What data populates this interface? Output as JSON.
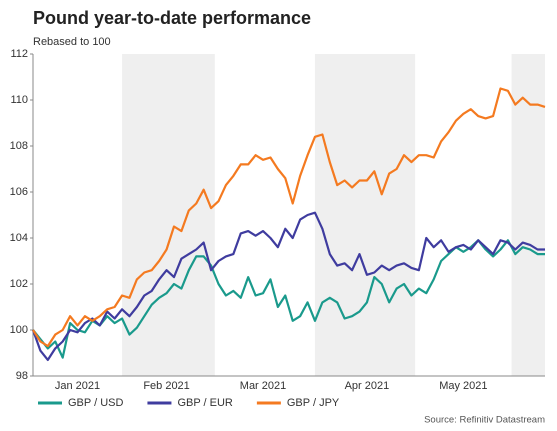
{
  "chart_data": {
    "type": "line",
    "title": "Pound year-to-date performance",
    "subtitle": "Rebased to 100",
    "source": "Source: Refinitiv Datastream",
    "categories": [
      null,
      null,
      null,
      null,
      null,
      null,
      "Jan 2021",
      null,
      null,
      null,
      null,
      null,
      null,
      null,
      null,
      null,
      null,
      null,
      "Feb 2021",
      null,
      null,
      null,
      null,
      null,
      null,
      null,
      null,
      null,
      null,
      null,
      null,
      "Mar 2021",
      null,
      null,
      null,
      null,
      null,
      null,
      null,
      null,
      null,
      null,
      null,
      null,
      null,
      "Apr 2021",
      null,
      null,
      null,
      null,
      null,
      null,
      null,
      null,
      null,
      null,
      null,
      null,
      "May 2021",
      null,
      null,
      null,
      null,
      null,
      null,
      null,
      null,
      null,
      null,
      null
    ],
    "ylim": [
      98,
      112
    ],
    "yticks": [
      98,
      100,
      102,
      104,
      106,
      108,
      110,
      112
    ],
    "shade_alternate_months": true,
    "series": [
      {
        "name": "GBP / USD",
        "color": "#1a9a8c",
        "values": [
          100,
          99.6,
          99.2,
          99.5,
          98.8,
          100.3,
          100.0,
          99.9,
          100.4,
          100.2,
          100.6,
          100.3,
          100.5,
          99.8,
          100.1,
          100.6,
          101.1,
          101.4,
          101.6,
          102.0,
          101.8,
          102.6,
          103.2,
          103.2,
          102.8,
          102.0,
          101.5,
          101.7,
          101.4,
          102.3,
          101.5,
          101.6,
          102.2,
          101.0,
          101.5,
          100.4,
          100.6,
          101.2,
          100.4,
          101.2,
          101.4,
          101.2,
          100.5,
          100.6,
          100.8,
          101.2,
          102.3,
          102.0,
          101.2,
          101.8,
          102.0,
          101.5,
          101.8,
          101.6,
          102.2,
          103.0,
          103.3,
          103.6,
          103.4,
          103.6,
          103.9,
          103.5,
          103.2,
          103.5,
          103.9,
          103.3,
          103.6,
          103.5,
          103.3,
          103.3
        ]
      },
      {
        "name": "GBP / EUR",
        "color": "#3f3c9f",
        "values": [
          100,
          99.1,
          98.7,
          99.2,
          99.5,
          100.0,
          99.9,
          100.3,
          100.5,
          100.2,
          100.8,
          100.5,
          100.9,
          100.6,
          101.0,
          101.5,
          101.7,
          102.2,
          102.6,
          102.3,
          103.1,
          103.3,
          103.5,
          103.8,
          102.6,
          103.0,
          103.2,
          103.3,
          104.2,
          104.3,
          104.1,
          104.3,
          104.0,
          103.6,
          104.4,
          104.0,
          104.8,
          105.0,
          105.1,
          104.4,
          103.3,
          102.8,
          102.9,
          102.6,
          103.3,
          102.4,
          102.5,
          102.8,
          102.6,
          102.8,
          102.9,
          102.7,
          102.6,
          104.0,
          103.6,
          103.9,
          103.4,
          103.6,
          103.7,
          103.5,
          103.9,
          103.6,
          103.3,
          103.9,
          103.8,
          103.5,
          103.8,
          103.7,
          103.5,
          103.5
        ]
      },
      {
        "name": "GBP / JPY",
        "color": "#f47a20",
        "values": [
          100,
          99.5,
          99.3,
          99.8,
          100.0,
          100.6,
          100.2,
          100.6,
          100.4,
          100.6,
          100.9,
          101.0,
          101.5,
          101.4,
          102.2,
          102.5,
          102.6,
          103.0,
          103.5,
          104.5,
          104.3,
          105.2,
          105.5,
          106.1,
          105.3,
          105.6,
          106.3,
          106.7,
          107.2,
          107.2,
          107.6,
          107.4,
          107.5,
          107.0,
          106.6,
          105.5,
          106.7,
          107.6,
          108.4,
          108.5,
          107.3,
          106.3,
          106.5,
          106.2,
          106.5,
          106.5,
          106.9,
          105.9,
          106.8,
          107.0,
          107.6,
          107.3,
          107.6,
          107.6,
          107.5,
          108.2,
          108.6,
          109.1,
          109.4,
          109.6,
          109.3,
          109.2,
          109.3,
          110.5,
          110.4,
          109.8,
          110.1,
          109.8,
          109.8,
          109.7
        ]
      }
    ]
  }
}
